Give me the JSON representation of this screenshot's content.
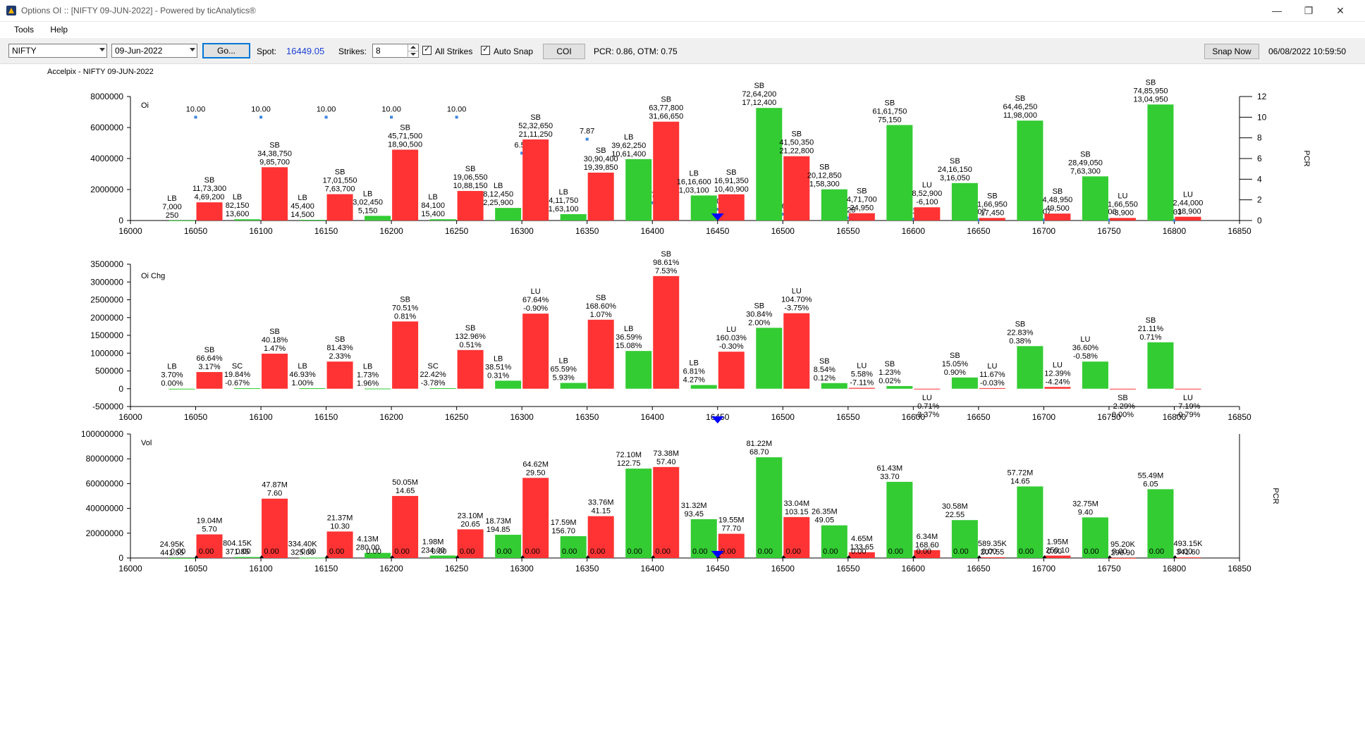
{
  "window": {
    "title": "Options OI :: [NIFTY 09-JUN-2022] - Powered by ticAnalytics®",
    "minimize": "—",
    "restore": "❐",
    "close": "✕"
  },
  "menu": [
    "Tools",
    "Help"
  ],
  "toolbar": {
    "symbol": "NIFTY",
    "expiry": "09-Jun-2022",
    "go_label": "Go...",
    "spot_label": "Spot:",
    "spot_value": "16449.05",
    "strikes_label": "Strikes:",
    "strikes_value": "8",
    "all_strikes_label": "All Strikes",
    "auto_snap_label": "Auto Snap",
    "coi_label": "COI",
    "pcr_text": "PCR: 0.86,  OTM: 0.75",
    "snap_label": "Snap Now",
    "datetime": "06/08/2022 10:59:50"
  },
  "colors": {
    "green": "#33cc33",
    "red": "#ff3333",
    "blue": "#0000ff",
    "pcr_dot": "#3d85e0"
  },
  "chart_data": {
    "caption": "Accelpix - NIFTY 09-JUN-2022",
    "strikes": [
      16050,
      16100,
      16150,
      16200,
      16250,
      16300,
      16350,
      16400,
      16450,
      16500,
      16550,
      16600,
      16650,
      16700,
      16750,
      16800
    ],
    "xlim": [
      16000,
      16850
    ],
    "x_ticks": [
      16000,
      16050,
      16100,
      16150,
      16200,
      16250,
      16300,
      16350,
      16400,
      16450,
      16500,
      16550,
      16600,
      16650,
      16700,
      16750,
      16800,
      16850
    ],
    "spot_marker": 16450,
    "panels": [
      {
        "name": "Oi",
        "type": "bar",
        "ylim": [
          0,
          8000000
        ],
        "y_ticks": [
          "0",
          "2000000",
          "4000000",
          "6000000",
          "8000000"
        ],
        "y_tick_vals": [
          0,
          2000000,
          4000000,
          6000000,
          8000000
        ],
        "right_axis": {
          "label": "PCR",
          "ylim": [
            0,
            12
          ],
          "ticks": [
            "0",
            "2",
            "4",
            "6",
            "8",
            "10",
            "12"
          ]
        },
        "call": [
          7000,
          82150,
          45400,
          302450,
          84100,
          812450,
          411750,
          3962250,
          1616600,
          7264200,
          2012850,
          6161750,
          2416150,
          6446250,
          2849050,
          7485950
        ],
        "put": [
          1173300,
          3438750,
          1701550,
          4571500,
          1906550,
          5232650,
          3090400,
          6377800,
          1691350,
          4150350,
          471700,
          852900,
          166950,
          448950,
          166550,
          244000
        ],
        "pcr": [
          10.0,
          10.0,
          10.0,
          10.0,
          10.0,
          6.52,
          7.87,
          1.72,
          1.09,
          0.61,
          0.25,
          0.14,
          0.07,
          0.07,
          0.06,
          0.03
        ],
        "pcr_labels": [
          "10.00",
          "10.00",
          "10.00",
          "10.00",
          "10.00",
          "6.52",
          "7.87",
          "1.72",
          "1.09",
          "0.61",
          "0.25",
          "0.14",
          "0.07",
          "0.07",
          "0.06",
          "0.03"
        ],
        "call_labels": [
          [
            "LB",
            "7,000",
            "250"
          ],
          [
            "LB",
            "82,150",
            "13,600"
          ],
          [
            "LB",
            "45,400",
            "14,500"
          ],
          [
            "LB",
            "3,02,450",
            "5,150"
          ],
          [
            "LB",
            "84,100",
            "15,400"
          ],
          [
            "LB",
            "8,12,450",
            "2,25,900"
          ],
          [
            "LB",
            "4,11,750",
            "1,63,100"
          ],
          [
            "LB",
            "39,62,250",
            "10,61,400"
          ],
          [
            "LB",
            "16,16,600",
            "1,03,100"
          ],
          [
            "SB",
            "72,64,200",
            "17,12,400"
          ],
          [
            "SB",
            "20,12,850",
            "1,58,300"
          ],
          [
            "SB",
            "61,61,750",
            "75,150"
          ],
          [
            "SB",
            "24,16,150",
            "3,16,050"
          ],
          [
            "SB",
            "64,46,250",
            "11,98,000"
          ],
          [
            "SB",
            "28,49,050",
            "7,63,300"
          ],
          [
            "SB",
            "74,85,950",
            "13,04,950"
          ]
        ],
        "put_labels": [
          [
            "SB",
            "11,73,300",
            "4,69,200"
          ],
          [
            "SB",
            "34,38,750",
            "9,85,700"
          ],
          [
            "SB",
            "17,01,550",
            "7,63,700"
          ],
          [
            "SB",
            "45,71,500",
            "18,90,500"
          ],
          [
            "SB",
            "19,06,550",
            "10,88,150"
          ],
          [
            "SB",
            "52,32,650",
            "21,11,250"
          ],
          [
            "SB",
            "30,90,400",
            "19,39,850"
          ],
          [
            "SB",
            "63,77,800",
            "31,66,650"
          ],
          [
            "SB",
            "16,91,350",
            "10,40,900"
          ],
          [
            "SB",
            "41,50,350",
            "21,22,800"
          ],
          [
            "SB",
            "4,71,700",
            "24,950"
          ],
          [
            "LU",
            "8,52,900",
            "-6,100"
          ],
          [
            "SB",
            "1,66,950",
            "17,450"
          ],
          [
            "SB",
            "4,48,950",
            "49,500"
          ],
          [
            "LU",
            "1,66,550",
            "-3,900"
          ],
          [
            "LU",
            "2,44,000",
            "-18,900"
          ]
        ]
      },
      {
        "name": "Oi Chg",
        "type": "bar",
        "ylim": [
          -500000,
          3500000
        ],
        "y_ticks": [
          "-500000",
          "0",
          "500000",
          "1000000",
          "1500000",
          "2000000",
          "2500000",
          "3000000",
          "3500000"
        ],
        "y_tick_vals": [
          -500000,
          0,
          500000,
          1000000,
          1500000,
          2000000,
          2500000,
          3000000,
          3500000
        ],
        "call": [
          250,
          13600,
          14500,
          5150,
          15400,
          225900,
          163100,
          1061400,
          103100,
          1712400,
          158300,
          75150,
          316050,
          1198000,
          763300,
          1304950
        ],
        "put": [
          469200,
          985700,
          763700,
          1890500,
          1088150,
          2111250,
          1939850,
          3166650,
          1040900,
          2122800,
          24950,
          -6100,
          17450,
          49500,
          -3900,
          -18900
        ],
        "call_labels": [
          [
            "LB",
            "3.70%",
            "0.00%"
          ],
          [
            "SC",
            "19.84%",
            "-0.67%"
          ],
          [
            "LB",
            "46.93%",
            "1.00%"
          ],
          [
            "LB",
            "1.73%",
            "1.96%"
          ],
          [
            "SC",
            "22.42%",
            "-3.78%"
          ],
          [
            "LB",
            "38.51%",
            "0.31%"
          ],
          [
            "LB",
            "65.59%",
            "5.93%"
          ],
          [
            "LB",
            "36.59%",
            "15.08%"
          ],
          [
            "LB",
            "6.81%",
            "4.27%"
          ],
          [
            "SB",
            "30.84%",
            "2.00%"
          ],
          [
            "SB",
            "8.54%",
            "0.12%"
          ],
          [
            "SB",
            "1.23%",
            "0.02%"
          ],
          [
            "SB",
            "15.05%",
            "0.90%"
          ],
          [
            "SB",
            "22.83%",
            "0.38%"
          ],
          [
            "LU",
            "36.60%",
            "-0.58%"
          ],
          [
            "SB",
            "21.11%",
            "0.71%"
          ]
        ],
        "put_labels": [
          [
            "SB",
            "66.64%",
            "3.17%"
          ],
          [
            "SB",
            "40.18%",
            "1.47%"
          ],
          [
            "SB",
            "81.43%",
            "2.33%"
          ],
          [
            "SB",
            "70.51%",
            "0.81%"
          ],
          [
            "SB",
            "132.96%",
            "0.51%"
          ],
          [
            "LU",
            "67.64%",
            "-0.90%"
          ],
          [
            "SB",
            "168.60%",
            "1.07%"
          ],
          [
            "SB",
            "98.61%",
            "7.53%"
          ],
          [
            "LU",
            "160.03%",
            "-0.30%"
          ],
          [
            "LU",
            "104.70%",
            "-3.75%"
          ],
          [
            "LU",
            "5.58%",
            "-7.11%"
          ],
          [
            "LU",
            "-0.71%",
            "-3.37%"
          ],
          [
            "LU",
            "11.67%",
            "-0.03%"
          ],
          [
            "LU",
            "12.39%",
            "-4.24%"
          ],
          [
            "SB",
            "-2.29%",
            "0.00%"
          ],
          [
            "LU",
            "-7.19%",
            "-0.79%"
          ]
        ]
      },
      {
        "name": "Vol",
        "type": "bar",
        "ylim": [
          0,
          100000000
        ],
        "y_ticks": [
          "0",
          "20000000",
          "40000000",
          "60000000",
          "80000000",
          "100000000"
        ],
        "y_tick_vals": [
          0,
          20000000,
          40000000,
          60000000,
          80000000,
          100000000
        ],
        "right_axis": {
          "label": "PCR"
        },
        "call": [
          24950,
          804150,
          334400,
          4130000,
          1980000,
          18730000,
          17590000,
          72100000,
          31320000,
          81220000,
          26350000,
          61430000,
          30580000,
          57720000,
          32750000,
          55490000
        ],
        "put": [
          19040000,
          47870000,
          21370000,
          50050000,
          23100000,
          64620000,
          33760000,
          73380000,
          19550000,
          33040000,
          4650000,
          6340000,
          589350,
          1950000,
          95200,
          493150
        ],
        "call_labels": [
          [
            "24.95K",
            "441.55"
          ],
          [
            "804.15K",
            "371.85"
          ],
          [
            "334.40K",
            "325.00"
          ],
          [
            "4.13M",
            "280.00"
          ],
          [
            "1.98M",
            "234.00"
          ],
          [
            "18.73M",
            "194.85"
          ],
          [
            "17.59M",
            "156.70"
          ],
          [
            "72.10M",
            "122.75"
          ],
          [
            "31.32M",
            "93.45"
          ],
          [
            "81.22M",
            "68.70"
          ],
          [
            "26.35M",
            "49.05"
          ],
          [
            "61.43M",
            "33.70"
          ],
          [
            "30.58M",
            "22.55"
          ],
          [
            "57.72M",
            "14.65"
          ],
          [
            "32.75M",
            "9.40"
          ],
          [
            "55.49M",
            "6.05"
          ]
        ],
        "put_labels": [
          [
            "19.04M",
            "5.70"
          ],
          [
            "47.87M",
            "7.60"
          ],
          [
            "21.37M",
            "10.30"
          ],
          [
            "50.05M",
            "14.65"
          ],
          [
            "23.10M",
            "20.65"
          ],
          [
            "64.62M",
            "29.50"
          ],
          [
            "33.76M",
            "41.15"
          ],
          [
            "73.38M",
            "57.40"
          ],
          [
            "19.55M",
            "77.70"
          ],
          [
            "33.04M",
            "103.15"
          ],
          [
            "4.65M",
            "133.65"
          ],
          [
            "6.34M",
            "168.60"
          ],
          [
            "589.35K",
            "207.55"
          ],
          [
            "1.95M",
            "250.10"
          ],
          [
            "95.20K",
            "296.90"
          ],
          [
            "493.15K",
            "341.60"
          ]
        ],
        "zero_labels": [
          "0.00",
          "0.00",
          "0.00",
          "0.00",
          "0.00",
          "0.00",
          "0.00",
          "0.00",
          "0.00",
          "0.00",
          "0.00",
          "0.00",
          "0.00",
          "0.00",
          "0.00",
          "0.00"
        ]
      }
    ]
  }
}
